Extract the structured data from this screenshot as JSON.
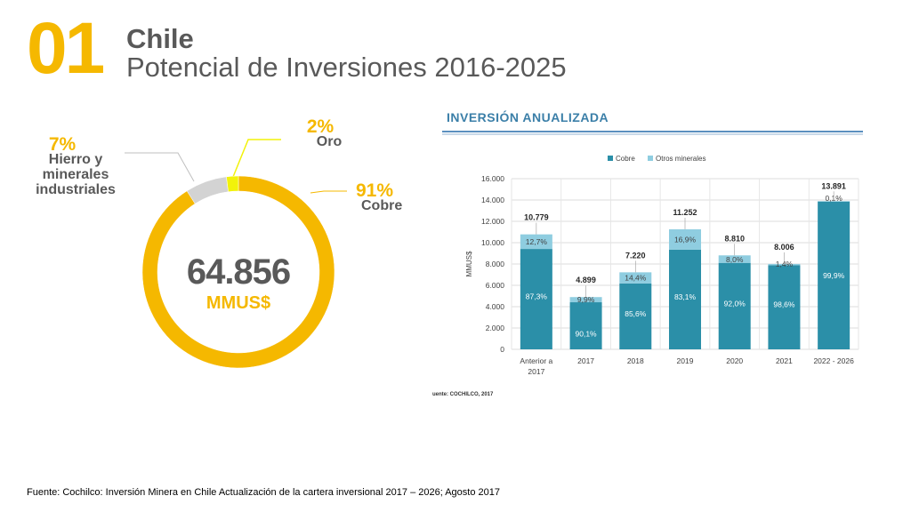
{
  "header": {
    "number": "01",
    "title": "Chile",
    "subtitle": "Potencial de Inversiones 2016-2025"
  },
  "donut": {
    "total_value": "64.856",
    "total_unit": "MMUS$",
    "segments": [
      {
        "pct": "91%",
        "label": "Cobre",
        "value": 91,
        "color": "#f5b800"
      },
      {
        "pct": "7%",
        "label": "Hierro y minerales industriales",
        "value": 7,
        "color": "#d3d3d3"
      },
      {
        "pct": "2%",
        "label": "Oro",
        "value": 2,
        "color": "#f2f20a"
      }
    ]
  },
  "panel_title": "INVERSIÓN ANUALIZADA",
  "chart_data": {
    "type": "bar",
    "stacked": true,
    "categories": [
      "Anterior a 2017",
      "2017",
      "2018",
      "2019",
      "2020",
      "2021",
      "2022 - 2026"
    ],
    "totals": [
      10779,
      4899,
      7220,
      11252,
      8810,
      8006,
      13891
    ],
    "total_labels": [
      "10.779",
      "4.899",
      "7.220",
      "11.252",
      "8.810",
      "8.006",
      "13.891"
    ],
    "series": [
      {
        "name": "Cobre",
        "color": "#2b8fa8",
        "percent_labels": [
          "87,3%",
          "90,1%",
          "85,6%",
          "83,1%",
          "92,0%",
          "98,6%",
          "99,9%"
        ],
        "share": [
          0.873,
          0.901,
          0.856,
          0.831,
          0.92,
          0.986,
          0.999
        ]
      },
      {
        "name": "Otros minerales",
        "color": "#8fcde0",
        "percent_labels": [
          "12,7%",
          "9,9%",
          "14,4%",
          "16,9%",
          "8,0%",
          "1,4%",
          "0,1%"
        ],
        "share": [
          0.127,
          0.099,
          0.144,
          0.169,
          0.08,
          0.014,
          0.001
        ]
      }
    ],
    "ylabel": "MMUS$",
    "ylim": [
      0,
      16000
    ],
    "yticks": [
      "0",
      "2.000",
      "4.000",
      "6.000",
      "8.000",
      "10.000",
      "12.000",
      "14.000",
      "16.000"
    ],
    "legend_position": "top",
    "grid": true
  },
  "chart_source": "uente: COCHILCO, 2017",
  "footer": "Fuente: Cochilco: Inversión Minera en Chile Actualización de la cartera inversional 2017 – 2026; Agosto 2017"
}
